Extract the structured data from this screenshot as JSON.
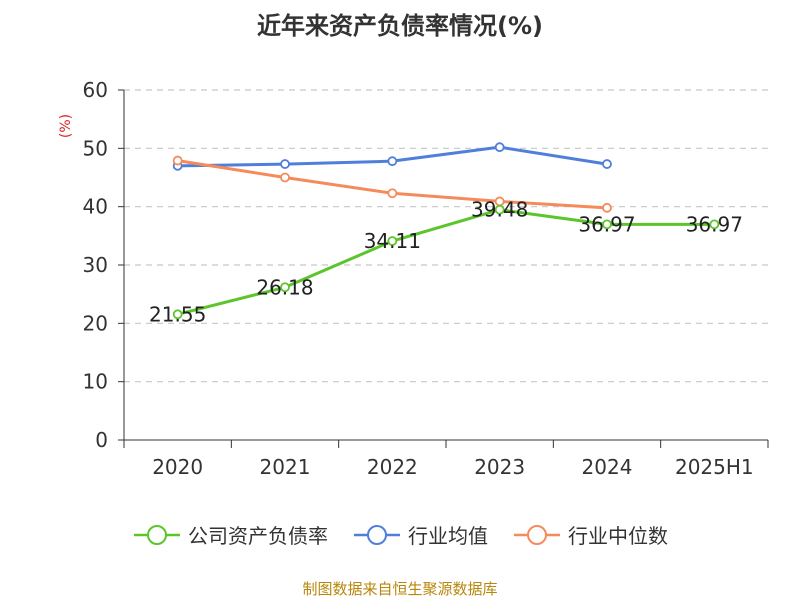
{
  "page": {
    "title": "近年来资产负债率情况(%)",
    "source": "制图数据来自恒生聚源数据库"
  },
  "chart_data": {
    "type": "line",
    "title": "近年来资产负债率情况(%)",
    "ylabel": "(%)",
    "xlabel": "",
    "categories": [
      "2020",
      "2021",
      "2022",
      "2023",
      "2024",
      "2025H1"
    ],
    "ylim": [
      0,
      60
    ],
    "yticks": [
      0,
      10,
      20,
      30,
      40,
      50,
      60
    ],
    "grid": true,
    "legend_position": "bottom",
    "series": [
      {
        "name": "公司资产负债率",
        "color": "#5cc52b",
        "values": [
          21.55,
          26.18,
          34.11,
          39.48,
          36.97,
          36.97
        ],
        "show_labels": true
      },
      {
        "name": "行业均值",
        "color": "#4f7fdb",
        "values": [
          47.0,
          47.3,
          47.8,
          50.2,
          47.3,
          null
        ],
        "show_labels": false
      },
      {
        "name": "行业中位数",
        "color": "#f58b5a",
        "values": [
          47.9,
          45.0,
          42.3,
          40.9,
          39.8,
          null
        ],
        "show_labels": false
      }
    ]
  }
}
